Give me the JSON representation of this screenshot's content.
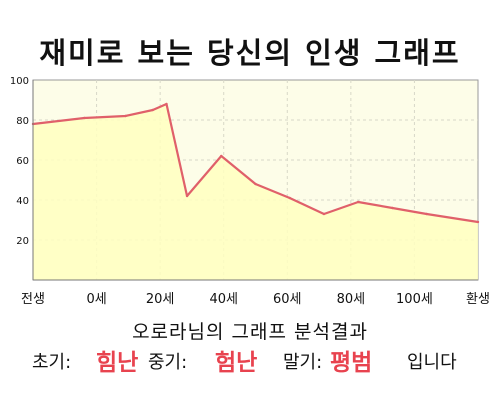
{
  "title": "재미로 보는 당신의 인생 그래프",
  "chart_data": {
    "type": "area",
    "categories": [
      "전생",
      "0세",
      "20세",
      "40세",
      "60세",
      "80세",
      "100세",
      "환생"
    ],
    "x": [
      -15,
      0,
      12,
      20,
      24,
      30,
      40,
      50,
      60,
      70,
      80,
      90,
      100,
      115
    ],
    "values": [
      78,
      81,
      82,
      85,
      88,
      42,
      62,
      48,
      41,
      33,
      39,
      36,
      33,
      29
    ],
    "ylim": [
      0,
      100
    ],
    "yticks": [
      20,
      40,
      60,
      80,
      100
    ],
    "grid": true,
    "colors": {
      "line": "#e0606a",
      "fill": "#ffffc0",
      "plot_bg": "#fdfde8",
      "grid": "#d8d8c8"
    }
  },
  "summary": {
    "heading": "오로라님의 그래프 분석결과",
    "early_label": "초기:",
    "early_value": "힘난",
    "middle_label": "중기:",
    "middle_value": "험난",
    "late_label": "말기:",
    "late_value": "평범",
    "ending": "입니다",
    "accent_color": "#e8434f"
  }
}
